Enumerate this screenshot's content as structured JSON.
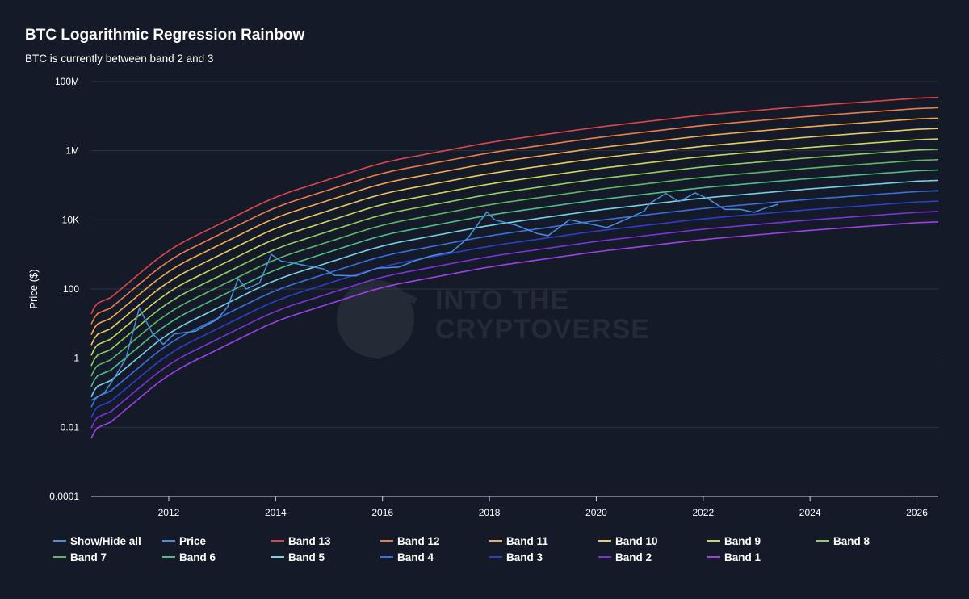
{
  "chart_data": {
    "type": "line",
    "title": "BTC Logarithmic Regression Rainbow",
    "subtitle": "BTC is currently between band 2 and 3",
    "ylabel": "Price ($)",
    "xlabel": "",
    "y_scale": "log",
    "ylim": [
      0.0001,
      100000000
    ],
    "xlim": [
      2010.55,
      2026.4
    ],
    "x_ticks": [
      "2012",
      "2014",
      "2016",
      "2018",
      "2020",
      "2022",
      "2024",
      "2026"
    ],
    "y_ticks": [
      "100M",
      "1M",
      "10K",
      "100",
      "1",
      "0.01",
      "0.0001"
    ],
    "grid": true,
    "legend_position": "bottom",
    "legend_toggle_label": "Show/Hide all",
    "watermark": [
      "INTO THE",
      "CRYPTOVERSE"
    ],
    "series": [
      {
        "name": "Price",
        "color": "#4a8fde",
        "x": [
          2010.55,
          2010.8,
          2011.0,
          2011.2,
          2011.45,
          2011.7,
          2011.9,
          2012.1,
          2012.5,
          2012.9,
          2013.1,
          2013.3,
          2013.45,
          2013.7,
          2013.92,
          2014.1,
          2014.5,
          2014.9,
          2015.1,
          2015.5,
          2015.9,
          2016.3,
          2016.6,
          2016.9,
          2017.3,
          2017.6,
          2017.95,
          2018.1,
          2018.5,
          2018.9,
          2019.1,
          2019.5,
          2019.9,
          2020.2,
          2020.5,
          2020.9,
          2021.0,
          2021.3,
          2021.55,
          2021.85,
          2022.1,
          2022.4,
          2022.7,
          2022.95,
          2023.2,
          2023.4
        ],
        "values": [
          0.06,
          0.1,
          0.3,
          1,
          28,
          5,
          2.5,
          5,
          6,
          13,
          30,
          200,
          100,
          150,
          1000,
          650,
          500,
          380,
          250,
          240,
          400,
          430,
          650,
          900,
          1200,
          3000,
          17000,
          10000,
          7000,
          4000,
          3500,
          10000,
          7500,
          6000,
          9500,
          18000,
          30000,
          58000,
          34000,
          60000,
          40000,
          20000,
          20000,
          16500,
          23000,
          28000
        ]
      },
      {
        "name": "Band 13",
        "color": "#e0454a",
        "offset_decades": 2.2
      },
      {
        "name": "Band 12",
        "color": "#ee7c4a",
        "offset_decades": 1.9
      },
      {
        "name": "Band 11",
        "color": "#f4aa50",
        "offset_decades": 1.6
      },
      {
        "name": "Band 10",
        "color": "#eccb62",
        "offset_decades": 1.3
      },
      {
        "name": "Band 9",
        "color": "#c9d95e",
        "offset_decades": 1.0
      },
      {
        "name": "Band 8",
        "color": "#8fd064",
        "offset_decades": 0.7
      },
      {
        "name": "Band 7",
        "color": "#5fb866",
        "offset_decades": 0.4
      },
      {
        "name": "Band 6",
        "color": "#4fbf8a",
        "offset_decades": 0.1
      },
      {
        "name": "Band 5",
        "color": "#77d2e6",
        "offset_decades": -0.2
      },
      {
        "name": "Band 4",
        "color": "#3c6fe0",
        "offset_decades": -0.5
      },
      {
        "name": "Band 3",
        "color": "#2f3ec9",
        "offset_decades": -0.8
      },
      {
        "name": "Band 2",
        "color": "#7a34d8",
        "offset_decades": -1.1
      },
      {
        "name": "Band 1",
        "color": "#a040e8",
        "offset_decades": -1.4
      }
    ],
    "band_center_points": [
      {
        "x": 2010.55,
        "value": 0.12
      },
      {
        "x": 2012.0,
        "value": 9
      },
      {
        "x": 2014.0,
        "value": 300
      },
      {
        "x": 2016.0,
        "value": 2900
      },
      {
        "x": 2018.0,
        "value": 11000
      },
      {
        "x": 2020.0,
        "value": 30000
      },
      {
        "x": 2022.0,
        "value": 68000
      },
      {
        "x": 2024.0,
        "value": 125000
      },
      {
        "x": 2026.4,
        "value": 230000
      }
    ]
  },
  "legend": [
    {
      "label": "Show/Hide all",
      "color": "#4a8fde"
    },
    {
      "label": "Price",
      "color": "#4a8fde"
    },
    {
      "label": "Band 13",
      "color": "#e0454a"
    },
    {
      "label": "Band 12",
      "color": "#ee7c4a"
    },
    {
      "label": "Band 11",
      "color": "#f4aa50"
    },
    {
      "label": "Band 10",
      "color": "#eccb62"
    },
    {
      "label": "Band 9",
      "color": "#c9d95e"
    },
    {
      "label": "Band 8",
      "color": "#8fd064"
    },
    {
      "label": "Band 7",
      "color": "#5fb866"
    },
    {
      "label": "Band 6",
      "color": "#4fbf8a"
    },
    {
      "label": "Band 5",
      "color": "#77d2e6"
    },
    {
      "label": "Band 4",
      "color": "#3c6fe0"
    },
    {
      "label": "Band 3",
      "color": "#2f3ec9"
    },
    {
      "label": "Band 2",
      "color": "#7a34d8"
    },
    {
      "label": "Band 1",
      "color": "#a040e8"
    }
  ],
  "colors": {
    "background": "#141a27",
    "grid": "#2e3444",
    "axis": "#cfd3db"
  }
}
